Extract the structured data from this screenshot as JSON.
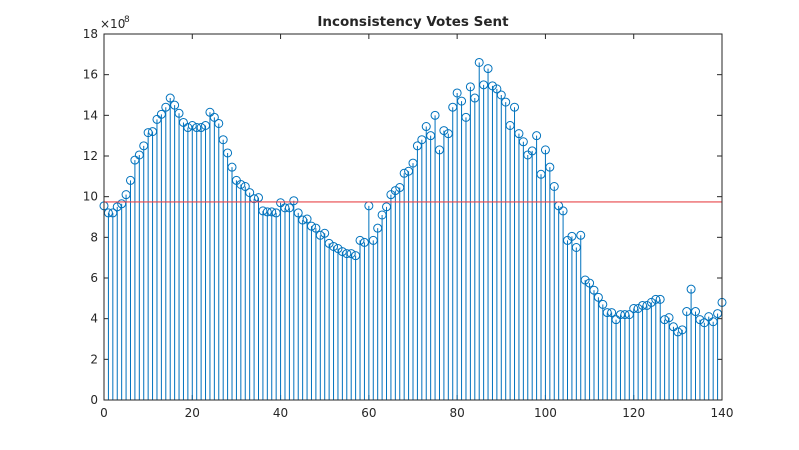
{
  "chart_data": {
    "type": "stem",
    "title": "Inconsistency Votes Sent",
    "y_multiplier": {
      "base": "×10",
      "exponent": "8"
    },
    "color": "#0072bd",
    "x": [
      0,
      1,
      2,
      3,
      4,
      5,
      6,
      7,
      8,
      9,
      10,
      11,
      12,
      13,
      14,
      15,
      16,
      17,
      18,
      19,
      20,
      21,
      22,
      23,
      24,
      25,
      26,
      27,
      28,
      29,
      30,
      31,
      32,
      33,
      34,
      35,
      36,
      37,
      38,
      39,
      40,
      41,
      42,
      43,
      44,
      45,
      46,
      47,
      48,
      49,
      50,
      51,
      52,
      53,
      54,
      55,
      56,
      57,
      58,
      59,
      60,
      61,
      62,
      63,
      64,
      65,
      66,
      67,
      68,
      69,
      70,
      71,
      72,
      73,
      74,
      75,
      76,
      77,
      78,
      79,
      80,
      81,
      82,
      83,
      84,
      85,
      86,
      87,
      88,
      89,
      90,
      91,
      92,
      93,
      94,
      95,
      96,
      97,
      98,
      99,
      100,
      101,
      102,
      103,
      104,
      105,
      106,
      107,
      108,
      109,
      110,
      111,
      112,
      113,
      114,
      115,
      116,
      117,
      118,
      119,
      120,
      121,
      122,
      123,
      124,
      125,
      126,
      127,
      128,
      129,
      130,
      131,
      132,
      133,
      134,
      135,
      136,
      137,
      138,
      139,
      140
    ],
    "values": [
      9.55,
      9.2,
      9.2,
      9.5,
      9.65,
      10.1,
      10.8,
      11.8,
      12.05,
      12.5,
      13.15,
      13.2,
      13.8,
      14.05,
      14.4,
      14.85,
      14.5,
      14.1,
      13.65,
      13.4,
      13.5,
      13.4,
      13.4,
      13.5,
      14.15,
      13.9,
      13.6,
      12.8,
      12.15,
      11.45,
      10.8,
      10.6,
      10.5,
      10.2,
      9.9,
      9.95,
      9.3,
      9.25,
      9.25,
      9.2,
      9.7,
      9.45,
      9.45,
      9.8,
      9.2,
      8.85,
      8.9,
      8.55,
      8.45,
      8.1,
      8.2,
      7.7,
      7.55,
      7.45,
      7.3,
      7.2,
      7.2,
      7.1,
      7.85,
      7.75,
      9.55,
      7.85,
      8.45,
      9.1,
      9.5,
      10.1,
      10.3,
      10.45,
      11.15,
      11.25,
      11.65,
      12.5,
      12.8,
      13.45,
      13.0,
      14.0,
      12.3,
      13.25,
      13.1,
      14.4,
      15.1,
      14.7,
      13.9,
      15.4,
      14.85,
      16.6,
      15.5,
      16.3,
      15.45,
      15.3,
      15.0,
      14.65,
      13.5,
      14.4,
      13.1,
      12.7,
      12.05,
      12.25,
      13.0,
      11.1,
      12.3,
      11.45,
      10.5,
      9.55,
      9.3,
      7.85,
      8.05,
      7.5,
      8.1,
      5.9,
      5.75,
      5.4,
      5.05,
      4.7,
      4.3,
      4.3,
      3.95,
      4.2,
      4.2,
      4.2,
      4.5,
      4.5,
      4.65,
      4.65,
      4.8,
      4.95,
      4.95,
      3.95,
      4.05,
      3.6,
      3.35,
      3.45,
      4.35,
      5.45,
      4.35,
      3.95,
      3.8,
      4.1,
      3.85,
      4.25,
      4.8
    ],
    "reference_line": {
      "value": 9.74,
      "color": "#e8474b"
    },
    "xlim": [
      0,
      140
    ],
    "xticks": [
      0,
      20,
      40,
      60,
      80,
      100,
      120,
      140
    ],
    "ylim": [
      0,
      18
    ],
    "yticks": [
      0,
      2,
      4,
      6,
      8,
      10,
      12,
      14,
      16,
      18
    ]
  }
}
